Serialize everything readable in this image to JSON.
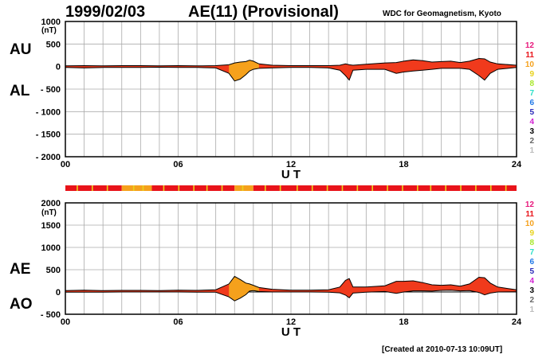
{
  "header": {
    "date": "1999/02/03",
    "title": "AE(11) (Provisional)",
    "org": "WDC for Geomagnetism, Kyoto"
  },
  "footer": {
    "created": "[Created at 2010-07-13 10:09UT]"
  },
  "colors": {
    "fill_red": "#f03a1c",
    "fill_orange": "#f5a11c",
    "fill_yellow": "#e8d21c",
    "grid": "#aaaaaa"
  },
  "legend": {
    "items": [
      {
        "label": "12",
        "color": "#e8197c"
      },
      {
        "label": "11",
        "color": "#e8131a"
      },
      {
        "label": "10",
        "color": "#f5a11c"
      },
      {
        "label": "9",
        "color": "#e8d21c"
      },
      {
        "label": "8",
        "color": "#a8e82a"
      },
      {
        "label": "7",
        "color": "#2ee0c8"
      },
      {
        "label": "6",
        "color": "#1f78e8"
      },
      {
        "label": "5",
        "color": "#2a2ab8"
      },
      {
        "label": "4",
        "color": "#d21fd2"
      },
      {
        "label": "3",
        "color": "#000000"
      },
      {
        "label": "2",
        "color": "#666666"
      },
      {
        "label": "1",
        "color": "#bbbbbb"
      }
    ]
  },
  "chart_data": [
    {
      "type": "area",
      "panel": "AU/AL",
      "labels": {
        "upper": "AU",
        "lower": "AL",
        "unit": "(nT)",
        "xlabel": "U T"
      },
      "ylim": [
        -2000,
        1000
      ],
      "yticks": [
        1000,
        500,
        0,
        -500,
        -1000,
        -1500,
        -2000
      ],
      "ytick_labels": [
        "1000",
        "500",
        "0",
        "- 500",
        "- 1000",
        "- 1500",
        "- 2000"
      ],
      "xlim": [
        0,
        24
      ],
      "xticks": [
        0,
        6,
        12,
        18,
        24
      ],
      "xtick_labels": [
        "00",
        "06",
        "12",
        "18",
        "24"
      ],
      "grid": true,
      "x_hours": [
        0,
        1,
        2,
        3,
        4,
        5,
        6,
        7,
        8,
        8.7,
        9,
        9.3,
        9.6,
        9.8,
        10,
        10.3,
        11,
        12,
        13,
        14,
        14.6,
        14.9,
        15.1,
        15.3,
        16,
        17,
        17.6,
        18,
        18.5,
        19,
        19.5,
        20,
        20.5,
        21,
        21.5,
        22,
        22.3,
        22.6,
        23,
        24
      ],
      "series": [
        {
          "name": "AU",
          "values": [
            15,
            20,
            15,
            20,
            20,
            15,
            20,
            15,
            20,
            40,
            80,
            100,
            110,
            140,
            120,
            60,
            30,
            20,
            20,
            20,
            30,
            60,
            40,
            30,
            50,
            80,
            90,
            120,
            150,
            130,
            100,
            110,
            120,
            90,
            120,
            180,
            170,
            100,
            60,
            30
          ]
        },
        {
          "name": "AL",
          "values": [
            -20,
            -30,
            -20,
            -20,
            -20,
            -15,
            -20,
            -20,
            -30,
            -150,
            -320,
            -280,
            -180,
            -100,
            -60,
            -40,
            -30,
            -20,
            -20,
            -30,
            -80,
            -200,
            -300,
            -80,
            -60,
            -60,
            -150,
            -120,
            -100,
            -80,
            -60,
            -40,
            -40,
            -40,
            -60,
            -200,
            -300,
            -150,
            -60,
            -20
          ]
        }
      ]
    },
    {
      "type": "area",
      "panel": "AE/AO",
      "labels": {
        "upper": "AE",
        "lower": "AO",
        "unit": "(nT)",
        "xlabel": "U T"
      },
      "ylim": [
        -500,
        2000
      ],
      "yticks": [
        2000,
        1500,
        1000,
        500,
        0,
        -500
      ],
      "ytick_labels": [
        "2000",
        "1500",
        "1000",
        "500",
        "0",
        "- 500"
      ],
      "xlim": [
        0,
        24
      ],
      "xticks": [
        0,
        6,
        12,
        18,
        24
      ],
      "xtick_labels": [
        "00",
        "06",
        "12",
        "18",
        "24"
      ],
      "grid": true,
      "x_hours": [
        0,
        1,
        2,
        3,
        4,
        5,
        6,
        7,
        8,
        8.7,
        9,
        9.3,
        9.6,
        9.8,
        10,
        10.3,
        11,
        12,
        13,
        14,
        14.6,
        14.9,
        15.1,
        15.3,
        16,
        17,
        17.6,
        18,
        18.5,
        19,
        19.5,
        20,
        20.5,
        21,
        21.5,
        22,
        22.3,
        22.6,
        23,
        24
      ],
      "series": [
        {
          "name": "AE",
          "values": [
            30,
            40,
            30,
            35,
            35,
            30,
            40,
            35,
            50,
            180,
            350,
            280,
            200,
            180,
            150,
            100,
            60,
            40,
            40,
            50,
            110,
            260,
            300,
            110,
            110,
            140,
            240,
            240,
            250,
            210,
            160,
            150,
            160,
            130,
            180,
            330,
            320,
            200,
            110,
            50
          ]
        },
        {
          "name": "AO",
          "values": [
            -3,
            -5,
            -3,
            0,
            0,
            0,
            0,
            -3,
            -5,
            -110,
            -200,
            -140,
            -60,
            20,
            30,
            10,
            0,
            0,
            0,
            -5,
            -20,
            -70,
            -130,
            -25,
            -5,
            10,
            -30,
            0,
            25,
            25,
            20,
            35,
            40,
            25,
            30,
            -10,
            -65,
            -25,
            0,
            5
          ]
        }
      ]
    }
  ],
  "activity_bar": {
    "segments": [
      {
        "from": 0,
        "to": 3,
        "color": "#e8131a"
      },
      {
        "from": 3,
        "to": 4.6,
        "color": "#f5a11c"
      },
      {
        "from": 4.6,
        "to": 9,
        "color": "#e8131a"
      },
      {
        "from": 9,
        "to": 10,
        "color": "#f5a11c"
      },
      {
        "from": 10,
        "to": 24,
        "color": "#e8131a"
      }
    ],
    "marks": [
      0.6,
      1.4,
      2.2,
      3.6,
      4.1,
      5.2,
      6.0,
      6.8,
      7.5,
      8.3,
      9.4,
      10.6,
      11.4,
      12.3,
      13.1,
      13.9,
      14.7,
      15.5,
      16.3,
      17.1,
      17.9,
      18.7,
      19.4,
      20.2,
      21.0,
      21.8,
      22.6,
      23.4
    ]
  }
}
